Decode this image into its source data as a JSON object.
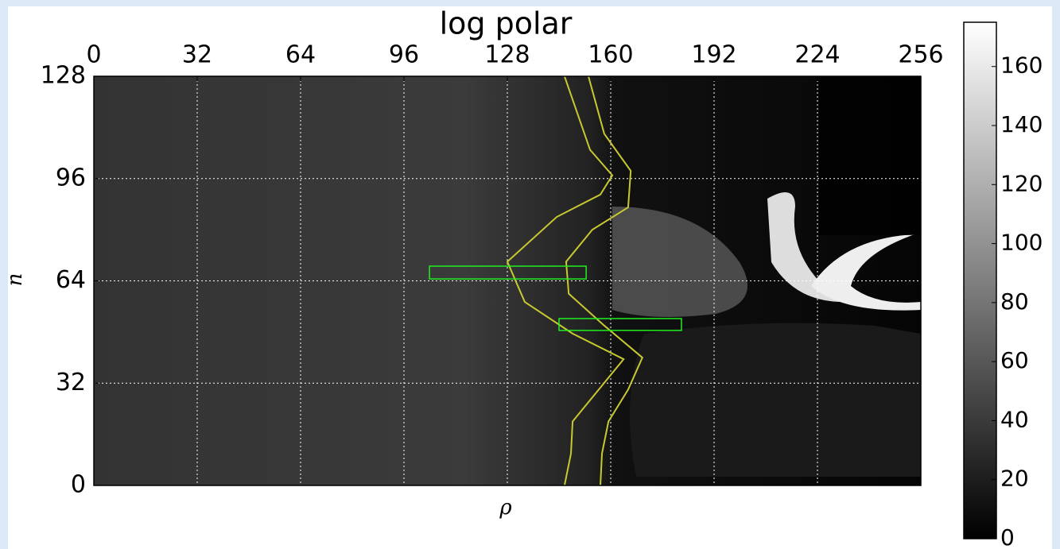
{
  "chart_data": {
    "type": "image",
    "title": "log polar",
    "xlabel": "ρ",
    "ylabel": "n",
    "xlim": [
      0,
      256
    ],
    "ylim": [
      0,
      128
    ],
    "xticks": [
      0,
      32,
      64,
      96,
      128,
      160,
      192,
      224,
      256
    ],
    "yticks": [
      0,
      32,
      64,
      96,
      128
    ],
    "grid": true,
    "series": [
      {
        "color": "#c8c832",
        "x": [
          145.7,
          153.6,
          160.5,
          156.8,
          143.3,
          128,
          133.4,
          148.2,
          164,
          158.4,
          148.2,
          147.7,
          145.7
        ],
        "values": [
          128,
          105,
          97,
          91,
          84,
          70,
          57.4,
          47.5,
          39.5,
          32.6,
          20,
          10,
          0
        ]
      },
      {
        "color": "#c8c832",
        "x": [
          153.1,
          158,
          166.2,
          165.4,
          154.3,
          146.2,
          147,
          158,
          169.8,
          165.4,
          159.3,
          157.3,
          156.8
        ],
        "values": [
          128,
          110,
          98.4,
          87,
          80,
          70,
          60,
          50,
          40,
          30,
          20,
          10,
          0
        ]
      }
    ],
    "rects": [
      {
        "color": "#22ee22",
        "x": [
          103.9,
          152.4
        ],
        "y": [
          64.6,
          68.6
        ]
      },
      {
        "color": "#22ee22",
        "x": [
          144,
          181.9
        ],
        "y": [
          48.5,
          52.2
        ]
      }
    ],
    "colorbar": {
      "lim": [
        0,
        175
      ],
      "ticks": [
        0,
        20,
        40,
        60,
        80,
        100,
        120,
        140,
        160
      ]
    }
  }
}
